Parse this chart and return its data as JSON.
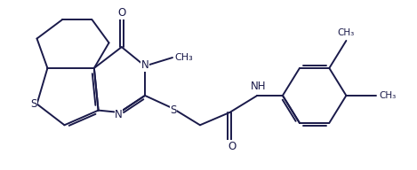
{
  "background_color": "#ffffff",
  "line_color": "#1a1a4a",
  "line_width": 1.4,
  "font_size": 8.5,
  "figsize": [
    4.69,
    1.92
  ],
  "dpi": 100,
  "xlim": [
    -0.3,
    9.5
  ],
  "ylim": [
    0.2,
    4.2
  ]
}
